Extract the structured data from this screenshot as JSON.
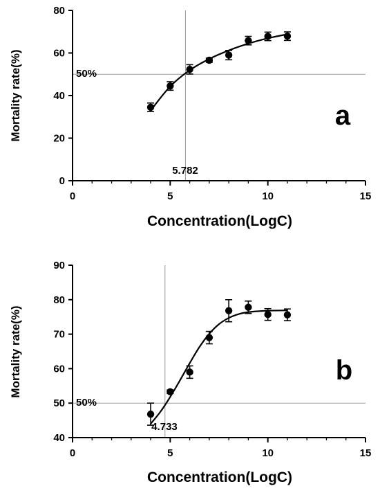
{
  "chart_data": [
    {
      "type": "scatter",
      "panel_label": "a",
      "xlabel": "Concentration(LogC)",
      "ylabel": "Mortality rate(%)",
      "xlim": [
        0,
        15
      ],
      "ylim": [
        0,
        80
      ],
      "xticks": [
        "0",
        "5",
        "10",
        "15"
      ],
      "yticks": [
        "0",
        "20",
        "40",
        "60",
        "80"
      ],
      "reference_y_label": "50%",
      "reference_x_label": "5.782",
      "reference_y": 50,
      "reference_x": 5.782,
      "grid": false,
      "series": [
        {
          "x": [
            4,
            5,
            6,
            7,
            8,
            9,
            10,
            11
          ],
          "y": [
            34.5,
            44.5,
            52.3,
            56.6,
            59.0,
            65.8,
            67.8,
            67.9
          ],
          "error": [
            2.0,
            2.0,
            2.2,
            1.0,
            2.2,
            2.0,
            2.0,
            2.0
          ]
        }
      ],
      "fit_curve": {
        "x": [
          4,
          5,
          6,
          7,
          8,
          9,
          10,
          11
        ],
        "y": [
          33.0,
          44.3,
          51.9,
          57.2,
          61.2,
          64.4,
          66.9,
          68.8
        ]
      }
    },
    {
      "type": "scatter",
      "panel_label": "b",
      "xlabel": "Concentration(LogC)",
      "ylabel": "Mortality rate(%)",
      "xlim": [
        0,
        15
      ],
      "ylim": [
        40,
        90
      ],
      "xticks": [
        "0",
        "5",
        "10",
        "15"
      ],
      "yticks": [
        "40",
        "50",
        "60",
        "70",
        "80",
        "90"
      ],
      "reference_y_label": "50%",
      "reference_x_label": "4.733",
      "reference_y": 50,
      "reference_x": 4.733,
      "grid": false,
      "series": [
        {
          "x": [
            4,
            5,
            6,
            7,
            8,
            9,
            10,
            11
          ],
          "y": [
            46.8,
            53.3,
            59.0,
            69.0,
            76.8,
            77.8,
            75.7,
            75.6
          ],
          "error": [
            3.2,
            0.5,
            1.8,
            1.8,
            3.2,
            1.8,
            1.7,
            1.7
          ]
        }
      ],
      "fit_curve": {
        "x": [
          4,
          4.5,
          5,
          5.5,
          6,
          6.5,
          7,
          7.5,
          8,
          8.5,
          9,
          10,
          11
        ],
        "y": [
          44.0,
          47.5,
          51.8,
          56.6,
          61.6,
          66.3,
          70.1,
          72.9,
          74.7,
          75.8,
          76.4,
          76.8,
          76.9
        ]
      }
    }
  ]
}
